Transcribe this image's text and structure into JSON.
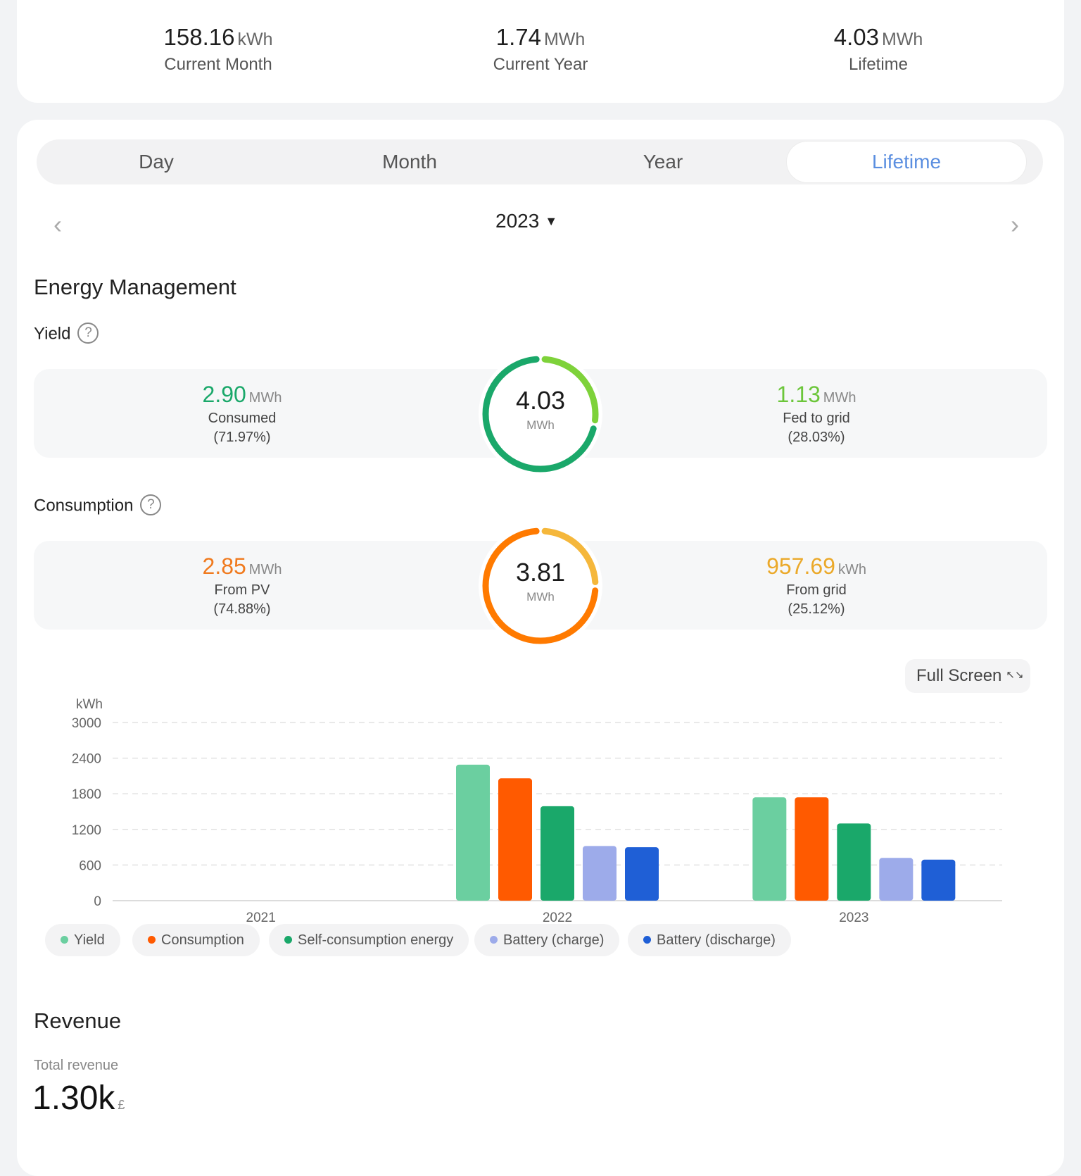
{
  "summary": {
    "month": {
      "value": "158.16",
      "unit": "kWh",
      "label": "Current Month"
    },
    "year": {
      "value": "1.74",
      "unit": "MWh",
      "label": "Current Year"
    },
    "lifetime": {
      "value": "4.03",
      "unit": "MWh",
      "label": "Lifetime"
    }
  },
  "tabs": [
    "Day",
    "Month",
    "Year",
    "Lifetime"
  ],
  "active_tab": "Lifetime",
  "period": {
    "selected": "2023",
    "caret": "▼",
    "prev": "‹",
    "next": "›"
  },
  "energy": {
    "title": "Energy Management",
    "yield": {
      "label": "Yield",
      "help": "?",
      "total": "4.03",
      "total_unit": "MWh",
      "left": {
        "value": "2.90",
        "unit": "MWh",
        "label": "Consumed",
        "pct": "(71.97%)",
        "color": "#1aa86a",
        "fraction": 0.7197
      },
      "right": {
        "value": "1.13",
        "unit": "MWh",
        "label": "Fed to grid",
        "pct": "(28.03%)",
        "color": "#7ed23a",
        "fraction": 0.2803
      }
    },
    "consumption": {
      "label": "Consumption",
      "help": "?",
      "total": "3.81",
      "total_unit": "MWh",
      "left": {
        "value": "2.85",
        "unit": "MWh",
        "label": "From PV",
        "pct": "(74.88%)",
        "color": "#ff7a00",
        "fraction": 0.7488
      },
      "right": {
        "value": "957.69",
        "unit": "kWh",
        "label": "From grid",
        "pct": "(25.12%)",
        "color": "#f5b73b",
        "fraction": 0.2512
      }
    }
  },
  "fullscreen": {
    "label": "Full Screen",
    "icon": "↖↘"
  },
  "chart_data": {
    "type": "bar",
    "ylabel": "kWh",
    "ylim": [
      0,
      3000
    ],
    "yticks": [
      0,
      600,
      1200,
      1800,
      2400,
      3000
    ],
    "categories": [
      "2021",
      "2022",
      "2023"
    ],
    "grid": true,
    "series": [
      {
        "name": "Yield",
        "color": "#6bcfa0",
        "values": [
          0,
          2290,
          1740
        ]
      },
      {
        "name": "Consumption",
        "color": "#ff5a00",
        "values": [
          0,
          2060,
          1740
        ]
      },
      {
        "name": "Self-consumption energy",
        "color": "#1aa86a",
        "values": [
          0,
          1590,
          1300
        ]
      },
      {
        "name": "Battery (charge)",
        "color": "#9dabea",
        "values": [
          0,
          920,
          720
        ]
      },
      {
        "name": "Battery (discharge)",
        "color": "#1f5fd6",
        "values": [
          0,
          900,
          690
        ]
      }
    ]
  },
  "revenue": {
    "title": "Revenue",
    "label": "Total revenue",
    "value": "1.30k",
    "currency": "£"
  }
}
